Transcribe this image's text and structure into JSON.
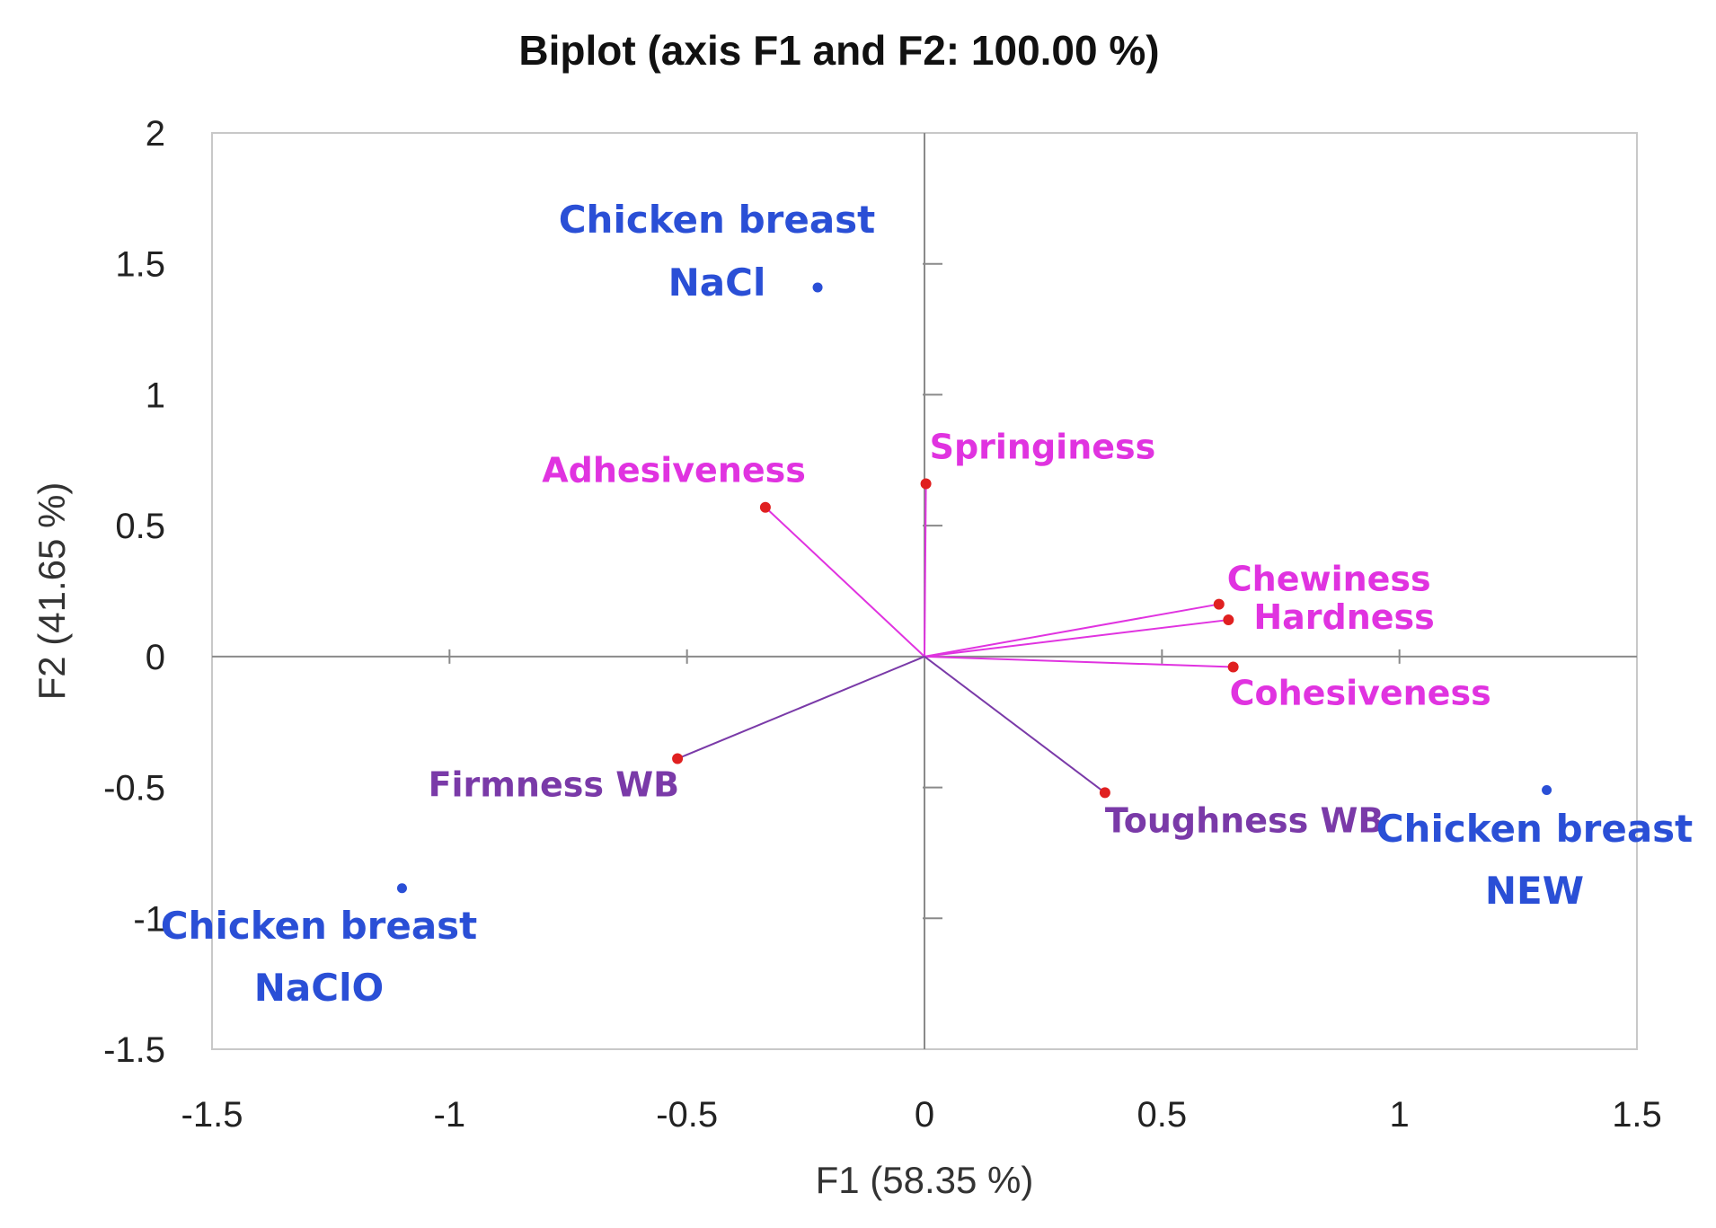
{
  "chart_data": {
    "type": "scatter",
    "subtype": "biplot",
    "title": "Biplot (axis F1 and F2: 100.00 %)",
    "xlabel": "F1 (58.35 %)",
    "ylabel": "F2 (41.65 %)",
    "xlim": [
      -1.5,
      1.5
    ],
    "ylim": [
      -1.5,
      2
    ],
    "xticks": [
      {
        "value": -1.5,
        "label": "-1.5"
      },
      {
        "value": -1,
        "label": "-1"
      },
      {
        "value": -0.5,
        "label": "-0.5"
      },
      {
        "value": 0,
        "label": "0"
      },
      {
        "value": 0.5,
        "label": "0.5"
      },
      {
        "value": 1,
        "label": "1"
      },
      {
        "value": 1.5,
        "label": "1.5"
      }
    ],
    "yticks": [
      {
        "value": -1.5,
        "label": "-1.5"
      },
      {
        "value": -1,
        "label": "-1"
      },
      {
        "value": -0.5,
        "label": "-0.5"
      },
      {
        "value": 0,
        "label": "0"
      },
      {
        "value": 0.5,
        "label": "0.5"
      },
      {
        "value": 1,
        "label": "1"
      },
      {
        "value": 1.5,
        "label": "1.5"
      },
      {
        "value": 2,
        "label": "2"
      }
    ],
    "variables": [
      {
        "name": "Adhesiveness",
        "x": -0.335,
        "y": 0.57,
        "color": "#e033e0"
      },
      {
        "name": "Springiness",
        "x": 0.003,
        "y": 0.66,
        "color": "#e033e0"
      },
      {
        "name": "Chewiness",
        "x": 0.62,
        "y": 0.2,
        "color": "#e033e0"
      },
      {
        "name": "Hardness",
        "x": 0.64,
        "y": 0.14,
        "color": "#e033e0"
      },
      {
        "name": "Cohesiveness",
        "x": 0.65,
        "y": -0.04,
        "color": "#e033e0"
      },
      {
        "name": "Firmness WB",
        "x": -0.52,
        "y": -0.39,
        "color": "#7a3aa8"
      },
      {
        "name": "Toughness WB",
        "x": 0.38,
        "y": -0.52,
        "color": "#7a3aa8"
      }
    ],
    "observations": [
      {
        "name": "Chicken breast NaCl",
        "lines": [
          "Chicken breast",
          "NaCl"
        ],
        "x": -0.225,
        "y": 1.41,
        "color": "#2a4fd6"
      },
      {
        "name": "Chicken breast NaClO",
        "lines": [
          "Chicken breast",
          "NaClO"
        ],
        "x": -1.1,
        "y": -0.885,
        "color": "#2a4fd6"
      },
      {
        "name": "Chicken breast NEW",
        "lines": [
          "Chicken breast",
          "NEW"
        ],
        "x": 1.31,
        "y": -0.51,
        "color": "#2a4fd6"
      }
    ],
    "point_color": "#e02020",
    "obs_point_color": "#2a4fd6",
    "grid": false,
    "legend": "none"
  }
}
